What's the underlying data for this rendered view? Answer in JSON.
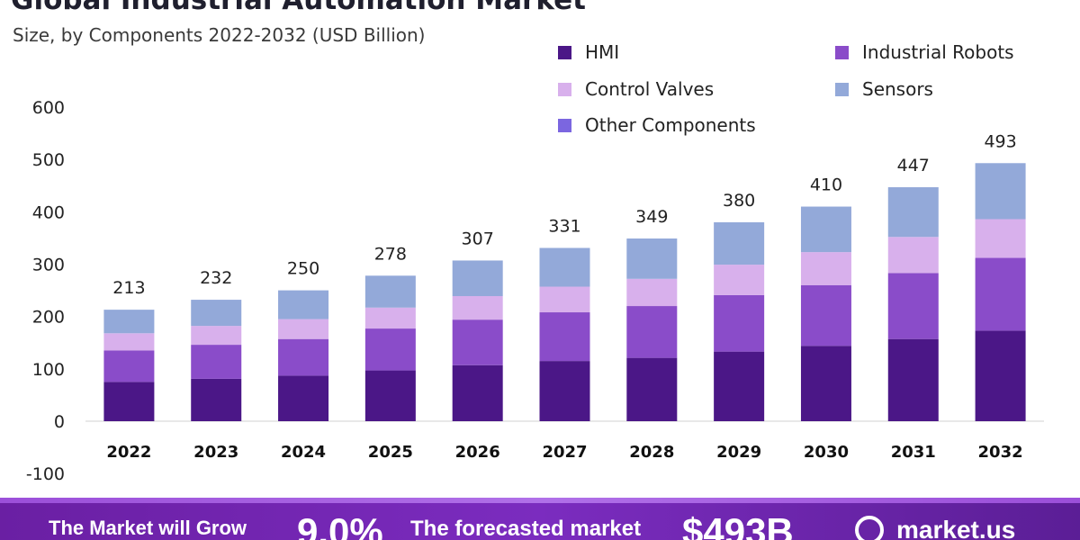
{
  "header": {
    "title": "Global Industrial Automation Market",
    "subtitle": "Size, by Components 2022-2032 (USD Billion)"
  },
  "legend": [
    {
      "label": "HMI",
      "color": "#4b1787"
    },
    {
      "label": "Industrial Robots",
      "color": "#8a4cc9"
    },
    {
      "label": "Control Valves",
      "color": "#d8b0ec"
    },
    {
      "label": "Sensors",
      "color": "#93a9d9"
    },
    {
      "label": "Other Components",
      "color": "#7b66e0"
    }
  ],
  "chart_data": {
    "type": "bar",
    "stacked": true,
    "title": "Global Industrial Automation Market",
    "subtitle": "Size, by Components 2022-2032 (USD Billion)",
    "xlabel": "",
    "ylabel": "",
    "ylim": [
      -100,
      600
    ],
    "yticks": [
      -100,
      0,
      100,
      200,
      300,
      400,
      500,
      600
    ],
    "categories": [
      "2022",
      "2023",
      "2024",
      "2025",
      "2026",
      "2027",
      "2028",
      "2029",
      "2030",
      "2031",
      "2032"
    ],
    "totals": [
      213,
      232,
      250,
      278,
      307,
      331,
      349,
      380,
      410,
      447,
      493
    ],
    "series": [
      {
        "name": "HMI",
        "color": "#4b1787",
        "values": [
          75,
          81,
          87,
          97,
          107,
          115,
          121,
          133,
          144,
          157,
          173
        ]
      },
      {
        "name": "Industrial Robots",
        "color": "#8a4cc9",
        "values": [
          60,
          65,
          70,
          80,
          87,
          93,
          99,
          108,
          116,
          126,
          139
        ]
      },
      {
        "name": "Control Valves",
        "color": "#d8b0ec",
        "values": [
          33,
          36,
          38,
          40,
          45,
          49,
          52,
          58,
          63,
          69,
          74
        ]
      },
      {
        "name": "Sensors",
        "color": "#93a9d9",
        "values": [
          45,
          50,
          55,
          61,
          68,
          74,
          77,
          81,
          87,
          95,
          107
        ]
      },
      {
        "name": "Other Components",
        "color": "#7b66e0",
        "values": [
          0,
          0,
          0,
          0,
          0,
          0,
          0,
          0,
          0,
          0,
          0
        ]
      }
    ]
  },
  "banner": {
    "text1": "The Market will Grow",
    "text2": "9.0%",
    "text3": "The forecasted market",
    "text4": "$493B",
    "brand": "market.us"
  }
}
